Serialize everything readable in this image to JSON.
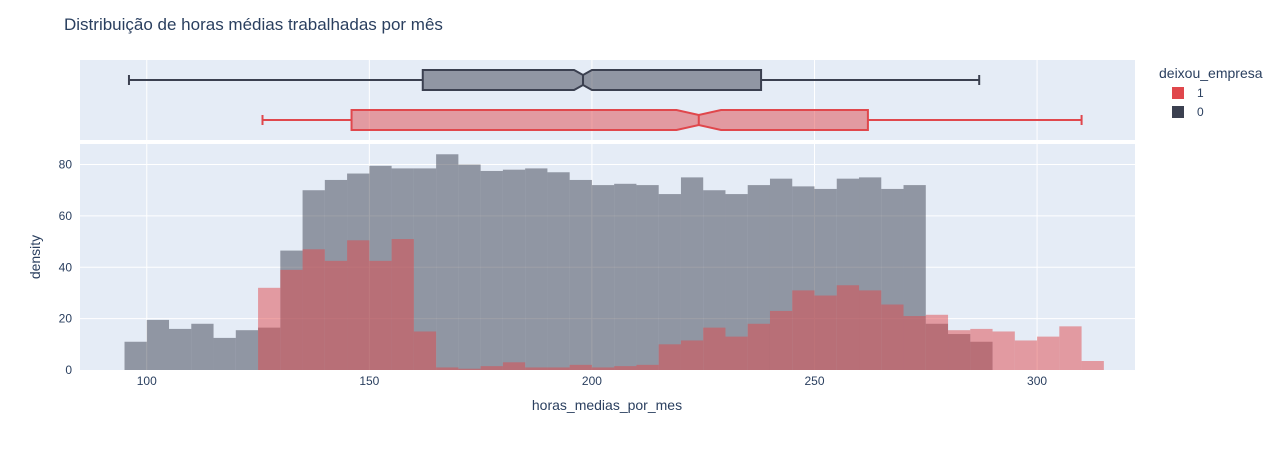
{
  "chart_data": {
    "type": "histogram",
    "title": "Distribuição de horas médias trabalhadas por mês",
    "xlabel": "horas_medias_por_mes",
    "ylabel": "density",
    "xlim": [
      85,
      322
    ],
    "ylim": [
      0,
      88
    ],
    "x_ticks": [
      100,
      150,
      200,
      250,
      300
    ],
    "y_ticks": [
      0,
      20,
      40,
      60,
      80
    ],
    "grid": true,
    "legend": {
      "title": "deixou_empresa",
      "placement": "top-right"
    },
    "colors": {
      "1": "#e0474c",
      "0": "#3b4050",
      "plot_bg": "#e5ecf6",
      "grid": "#ffffff"
    },
    "bin_width": 5,
    "series": [
      {
        "name": "0",
        "bin_starts": [
          95,
          100,
          105,
          110,
          115,
          120,
          125,
          130,
          135,
          140,
          145,
          150,
          155,
          160,
          165,
          170,
          175,
          180,
          185,
          190,
          195,
          200,
          205,
          210,
          215,
          220,
          225,
          230,
          235,
          240,
          245,
          250,
          255,
          260,
          265,
          270,
          275,
          280,
          285
        ],
        "values": [
          11,
          19.5,
          16,
          18,
          12.5,
          15.5,
          16.5,
          46.5,
          70,
          74,
          76.5,
          79.5,
          78.5,
          78.5,
          84,
          80,
          77.5,
          78,
          78.5,
          77,
          74,
          72,
          72.5,
          72,
          68.5,
          75,
          70,
          68.5,
          72,
          74.5,
          71.5,
          70.5,
          74.5,
          75,
          70.5,
          72,
          18,
          14,
          11
        ]
      },
      {
        "name": "1",
        "bin_starts": [
          125,
          130,
          135,
          140,
          145,
          150,
          155,
          160,
          165,
          170,
          175,
          180,
          185,
          190,
          195,
          200,
          205,
          210,
          215,
          220,
          225,
          230,
          235,
          240,
          245,
          250,
          255,
          260,
          265,
          270,
          275,
          280,
          285,
          290,
          295,
          300,
          305,
          310
        ],
        "values": [
          32,
          39,
          47,
          42.5,
          50.5,
          42.5,
          51,
          15,
          1,
          0.5,
          1.5,
          3,
          1,
          1,
          2,
          1,
          1.5,
          2,
          10,
          11.5,
          16.5,
          13,
          18,
          23,
          31,
          29,
          33,
          31,
          25.5,
          21,
          21.5,
          15.5,
          16,
          15,
          11.5,
          13,
          17,
          3.5
        ]
      }
    ],
    "box": [
      {
        "name": "1",
        "min": 126,
        "q1": 146,
        "median": 224,
        "q3": 262,
        "max": 310,
        "notch_low": 219,
        "notch_high": 229
      },
      {
        "name": "0",
        "min": 96,
        "q1": 162,
        "median": 198,
        "q3": 238,
        "max": 287,
        "notch_low": 196,
        "notch_high": 200
      }
    ]
  }
}
